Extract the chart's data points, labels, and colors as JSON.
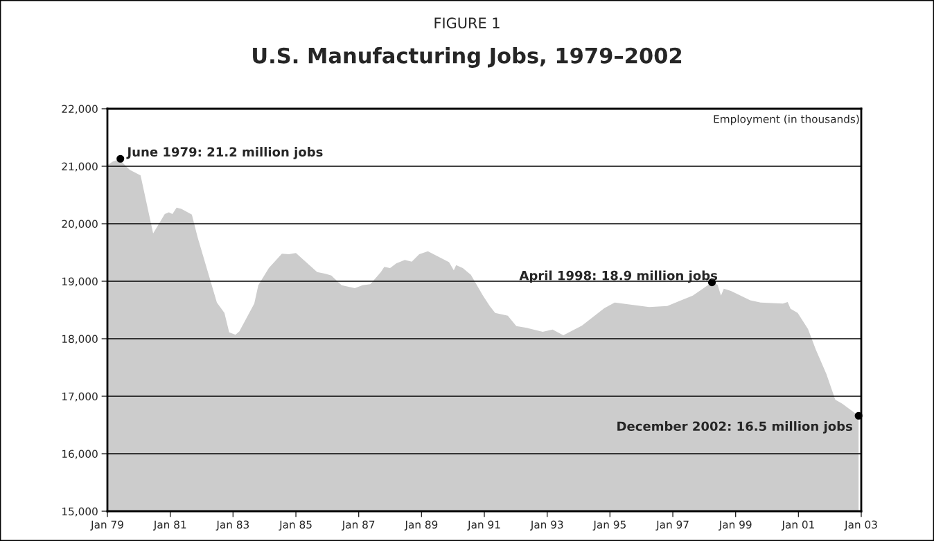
{
  "chart_data": {
    "type": "area",
    "subtitle": "FIGURE 1",
    "title": "U.S. Manufacturing Jobs, 1979–2002",
    "ylabel": "Employment (in thousands)",
    "series": [
      {
        "color": "#cccccc",
        "x": [
          "1979-01-01",
          "1979-03-05",
          "1979-06-01",
          "1979-06-27",
          "1979-09-16",
          "1980-01-22",
          "1980-06-16",
          "1980-10-29",
          "1980-12-16",
          "1981-01-26",
          "1981-03-16",
          "1981-05-10",
          "1981-09-09",
          "1981-11-14",
          "1982-06-27",
          "1982-09-23",
          "1982-11-17",
          "1983-01-29",
          "1983-03-16",
          "1983-09-05",
          "1983-10-22",
          "1984-02-21",
          "1984-07-22",
          "1984-10-11",
          "1985-01-01",
          "1985-09-05",
          "1985-12-13",
          "1986-02-17",
          "1986-06-16",
          "1986-11-17",
          "1987-02-14",
          "1987-05-17",
          "1987-09-16",
          "1987-10-26",
          "1988-01-01",
          "1988-03-13",
          "1988-06-20",
          "1988-09-09",
          "1988-12-05",
          "1989-03-16",
          "1989-11-17",
          "1990-01-11",
          "1990-02-07",
          "1990-04-26",
          "1990-07-29",
          "1990-12-16",
          "1991-03-05",
          "1991-05-07",
          "1991-10-01",
          "1992-01-08",
          "1992-05-07",
          "1992-07-26",
          "1992-11-10",
          "1993-03-05",
          "1993-07-08",
          "1994-02-10",
          "1994-10-26",
          "1995-02-25",
          "1996-04-01",
          "1996-10-29",
          "1997-04-08",
          "1997-08-21",
          "1998-04-01",
          "1998-06-05",
          "1998-07-15",
          "1998-08-17",
          "1998-11-07",
          "1999-06-20",
          "1999-10-19",
          "2000-07-04",
          "2000-08-28",
          "2000-10-01",
          "2000-12-23",
          "2001-04-22",
          "2001-07-22",
          "2001-11-21",
          "2002-03-05",
          "2002-05-25",
          "2002-12-01"
        ],
        "values": [
          21020,
          21080,
          21130,
          21060,
          20940,
          20840,
          19830,
          20170,
          20200,
          20170,
          20280,
          20260,
          20160,
          19770,
          18630,
          18450,
          18110,
          18070,
          18130,
          18610,
          18930,
          19230,
          19480,
          19470,
          19490,
          19160,
          19130,
          19100,
          18930,
          18880,
          18930,
          18950,
          19160,
          19250,
          19230,
          19310,
          19370,
          19340,
          19470,
          19520,
          19330,
          19190,
          19280,
          19230,
          19110,
          18750,
          18570,
          18450,
          18400,
          18220,
          18190,
          18160,
          18120,
          18160,
          18060,
          18230,
          18530,
          18630,
          18550,
          18570,
          18670,
          18750,
          18980,
          18940,
          18750,
          18870,
          18830,
          18670,
          18630,
          18610,
          18640,
          18520,
          18450,
          18170,
          17810,
          17390,
          16940,
          16870,
          16660
        ]
      }
    ],
    "xlim": [
      "1979-01-01",
      "2003-01-01"
    ],
    "xticks": [
      {
        "value": "1979-01",
        "label": "Jan 79"
      },
      {
        "value": "1981-01",
        "label": "Jan 81"
      },
      {
        "value": "1983-01",
        "label": "Jan 83"
      },
      {
        "value": "1985-01",
        "label": "Jan 85"
      },
      {
        "value": "1987-01",
        "label": "Jan 87"
      },
      {
        "value": "1989-01",
        "label": "Jan 89"
      },
      {
        "value": "1991-01",
        "label": "Jan 91"
      },
      {
        "value": "1993-01",
        "label": "Jan 93"
      },
      {
        "value": "1995-01",
        "label": "Jan 95"
      },
      {
        "value": "1997-01",
        "label": "Jan 97"
      },
      {
        "value": "1999-01",
        "label": "Jan 99"
      },
      {
        "value": "2001-01",
        "label": "Jan 01"
      },
      {
        "value": "2003-01",
        "label": "Jan 03"
      }
    ],
    "ylim": [
      15000,
      22000
    ],
    "yticks": [
      {
        "value": 15000,
        "label": "15,000"
      },
      {
        "value": 16000,
        "label": "16,000"
      },
      {
        "value": 17000,
        "label": "17,000"
      },
      {
        "value": 18000,
        "label": "18,000"
      },
      {
        "value": 19000,
        "label": "19,000"
      },
      {
        "value": 20000,
        "label": "20,000"
      },
      {
        "value": 21000,
        "label": "21,000"
      },
      {
        "value": 22000,
        "label": "22,000"
      }
    ],
    "grid": "y",
    "annotations": [
      {
        "text": "June 1979: 21.2 million jobs",
        "x": "1979-06-01",
        "y": 21130
      },
      {
        "text": "April 1998: 18.9 million jobs",
        "x": "1998-04-01",
        "y": 18980
      },
      {
        "text": "December 2002: 16.5 million jobs",
        "x": "2002-12-01",
        "y": 16660
      }
    ]
  }
}
